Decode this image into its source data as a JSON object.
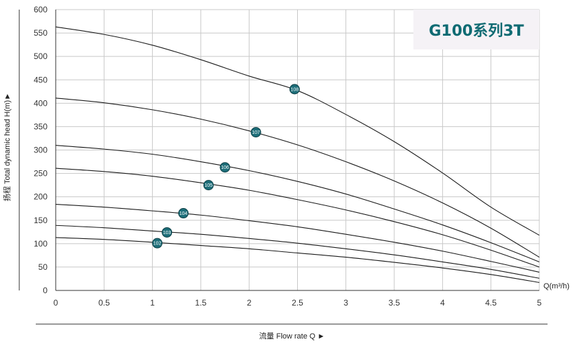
{
  "badge": "G100系列3T",
  "chart_data": {
    "type": "line",
    "title": "G100系列3T",
    "xlabel": "流量 Flow rate Q ►",
    "ylabel": "扬程  Total dynamic head H(m)►",
    "x_unit": "Q(m³/h)",
    "xlim": [
      0,
      5
    ],
    "ylim": [
      0,
      600
    ],
    "x_ticks": [
      "0",
      "0.5",
      "1",
      "1.5",
      "2",
      "2.5",
      "3",
      "3.5",
      "4",
      "4.5",
      "5"
    ],
    "y_ticks": [
      "0",
      "50",
      "100",
      "150",
      "200",
      "250",
      "300",
      "350",
      "400",
      "450",
      "500",
      "550",
      "600"
    ],
    "grid": true,
    "series": [
      {
        "name": "102",
        "label_at": [
          1.05,
          101
        ],
        "x": [
          0,
          0.5,
          1,
          1.5,
          2,
          2.5,
          3,
          3.5,
          4,
          4.5,
          5
        ],
        "y": [
          113,
          109,
          103,
          96,
          89,
          80,
          71,
          60,
          48,
          34,
          17
        ]
      },
      {
        "name": "103",
        "label_at": [
          1.15,
          124
        ],
        "x": [
          0,
          0.5,
          1,
          1.5,
          2,
          2.5,
          3,
          3.5,
          4,
          4.5,
          5
        ],
        "y": [
          139,
          134,
          127,
          120,
          111,
          101,
          89,
          76,
          61,
          45,
          26
        ]
      },
      {
        "name": "104",
        "label_at": [
          1.32,
          165
        ],
        "x": [
          0,
          0.5,
          1,
          1.5,
          2,
          2.5,
          3,
          3.5,
          4,
          4.5,
          5
        ],
        "y": [
          184,
          178,
          170,
          161,
          149,
          136,
          120,
          103,
          84,
          62,
          39
        ]
      },
      {
        "name": "105",
        "label_at": [
          1.58,
          225
        ],
        "x": [
          0,
          0.5,
          1,
          1.5,
          2,
          2.5,
          3,
          3.5,
          4,
          4.5,
          5
        ],
        "y": [
          261,
          254,
          244,
          230,
          214,
          194,
          172,
          147,
          119,
          86,
          50
        ]
      },
      {
        "name": "106",
        "label_at": [
          1.75,
          263
        ],
        "x": [
          0,
          0.5,
          1,
          1.5,
          2,
          2.5,
          3,
          3.5,
          4,
          4.5,
          5
        ],
        "y": [
          310,
          302,
          291,
          275,
          256,
          233,
          206,
          174,
          140,
          102,
          61
        ]
      },
      {
        "name": "107",
        "label_at": [
          2.07,
          338
        ],
        "x": [
          0,
          0.5,
          1,
          1.5,
          2,
          2.5,
          3,
          3.5,
          4,
          4.5,
          5
        ],
        "y": [
          411,
          401,
          386,
          366,
          341,
          311,
          275,
          234,
          187,
          133,
          71
        ]
      },
      {
        "name": "108",
        "label_at": [
          2.47,
          430
        ],
        "x": [
          0,
          0.5,
          1,
          1.5,
          2,
          2.5,
          3,
          3.5,
          4,
          4.5,
          5
        ],
        "y": [
          563,
          547,
          524,
          493,
          458,
          427,
          376,
          318,
          251,
          178,
          118
        ]
      }
    ]
  }
}
